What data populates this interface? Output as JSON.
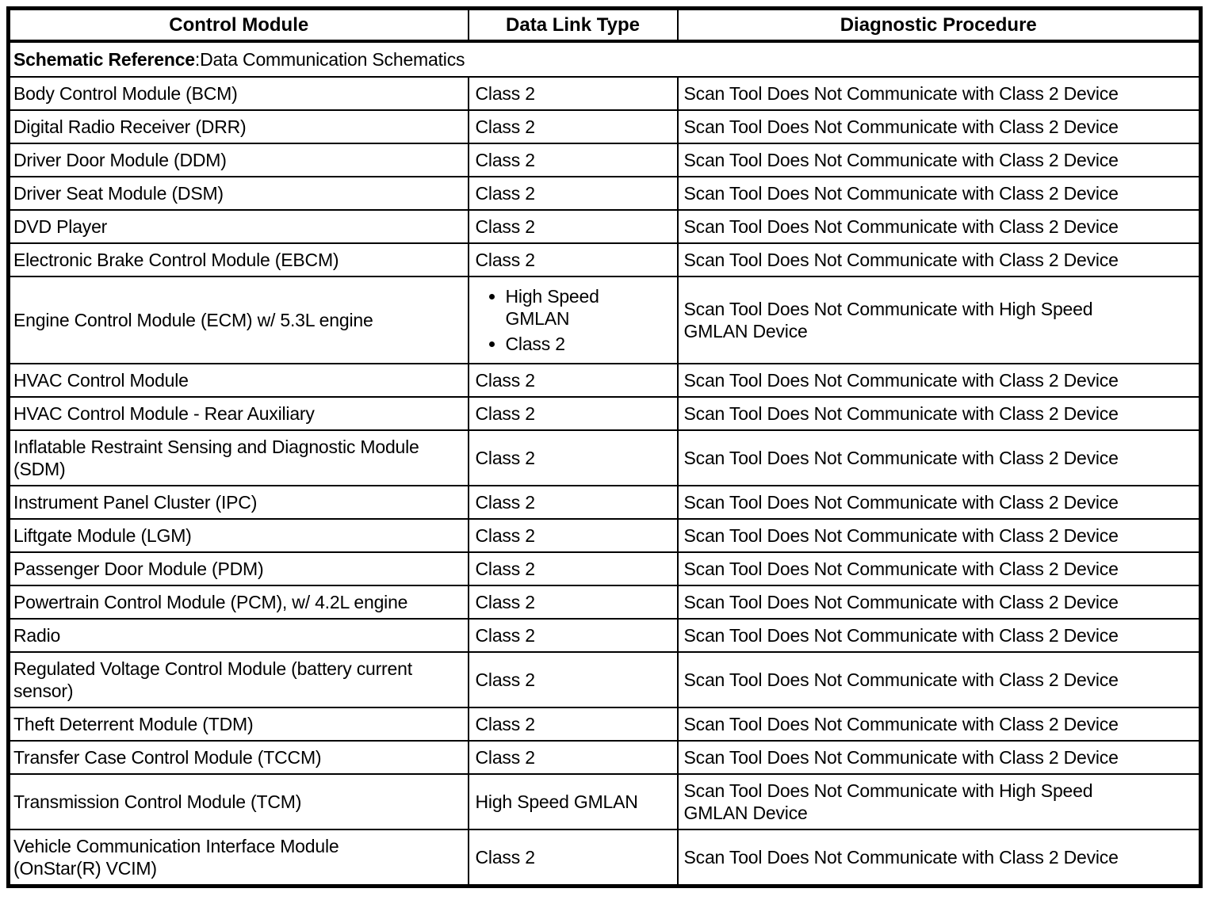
{
  "page": {
    "background_color": "#ffffff",
    "text_color": "#000000",
    "border_color": "#000000"
  },
  "table": {
    "headers": [
      {
        "label": "Control Module"
      },
      {
        "label": "Data Link Type"
      },
      {
        "label": "Diagnostic Procedure"
      }
    ],
    "schematic_reference_label": "Schematic Reference",
    "schematic_reference_value": ":Data Communication Schematics",
    "rows": [
      {
        "module": "Body Control Module (BCM)",
        "link_types": [
          "Class 2"
        ],
        "procedure": "Scan Tool Does Not Communicate with Class 2 Device"
      },
      {
        "module": "Digital Radio Receiver (DRR)",
        "link_types": [
          "Class 2"
        ],
        "procedure": "Scan Tool Does Not Communicate with Class 2 Device"
      },
      {
        "module": "Driver Door Module (DDM)",
        "link_types": [
          "Class 2"
        ],
        "procedure": "Scan Tool Does Not Communicate with Class 2 Device"
      },
      {
        "module": "Driver Seat Module (DSM)",
        "link_types": [
          "Class 2"
        ],
        "procedure": "Scan Tool Does Not Communicate with Class 2 Device"
      },
      {
        "module": "DVD Player",
        "link_types": [
          "Class 2"
        ],
        "procedure": "Scan Tool Does Not Communicate with Class 2 Device"
      },
      {
        "module": "Electronic Brake Control Module (EBCM)",
        "link_types": [
          "Class 2"
        ],
        "procedure": "Scan Tool Does Not Communicate with Class 2 Device"
      },
      {
        "module": "Engine Control Module (ECM) w/ 5.3L engine",
        "link_types": [
          "High Speed\nGMLAN",
          "Class 2"
        ],
        "procedure": "Scan Tool Does Not Communicate with High Speed\nGMLAN Device"
      },
      {
        "module": "HVAC Control Module",
        "link_types": [
          "Class 2"
        ],
        "procedure": "Scan Tool Does Not Communicate with Class 2 Device"
      },
      {
        "module": "HVAC Control Module - Rear Auxiliary",
        "link_types": [
          "Class 2"
        ],
        "procedure": "Scan Tool Does Not Communicate with Class 2 Device"
      },
      {
        "module": "Inflatable Restraint Sensing and Diagnostic Module\n(SDM)",
        "link_types": [
          "Class 2"
        ],
        "procedure": "Scan Tool Does Not Communicate with Class 2 Device"
      },
      {
        "module": "Instrument Panel Cluster (IPC)",
        "link_types": [
          "Class 2"
        ],
        "procedure": "Scan Tool Does Not Communicate with Class 2 Device"
      },
      {
        "module": "Liftgate Module (LGM)",
        "link_types": [
          "Class 2"
        ],
        "procedure": "Scan Tool Does Not Communicate with Class 2 Device"
      },
      {
        "module": "Passenger Door Module (PDM)",
        "link_types": [
          "Class 2"
        ],
        "procedure": "Scan Tool Does Not Communicate with Class 2 Device"
      },
      {
        "module": "Powertrain Control Module (PCM), w/ 4.2L engine",
        "link_types": [
          "Class 2"
        ],
        "procedure": "Scan Tool Does Not Communicate with Class 2 Device"
      },
      {
        "module": "Radio",
        "link_types": [
          "Class 2"
        ],
        "procedure": "Scan Tool Does Not Communicate with Class 2 Device"
      },
      {
        "module": "Regulated Voltage Control Module (battery current\nsensor)",
        "link_types": [
          "Class 2"
        ],
        "procedure": "Scan Tool Does Not Communicate with Class 2 Device"
      },
      {
        "module": "Theft Deterrent Module (TDM)",
        "link_types": [
          "Class 2"
        ],
        "procedure": "Scan Tool Does Not Communicate with Class 2 Device"
      },
      {
        "module": "Transfer Case Control Module (TCCM)",
        "link_types": [
          "Class 2"
        ],
        "procedure": "Scan Tool Does Not Communicate with Class 2 Device"
      },
      {
        "module": "Transmission Control Module (TCM)",
        "link_types": [
          "High Speed GMLAN"
        ],
        "procedure": "Scan Tool Does Not Communicate with High Speed\nGMLAN Device"
      },
      {
        "module": "Vehicle Communication Interface Module\n(OnStar(R) VCIM)",
        "link_types": [
          "Class 2"
        ],
        "procedure": "Scan Tool Does Not Communicate with Class 2 Device"
      }
    ]
  }
}
